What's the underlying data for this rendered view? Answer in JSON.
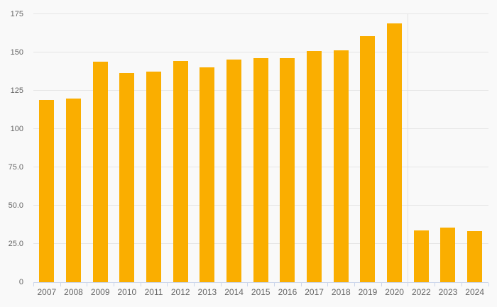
{
  "chart_data": {
    "type": "bar",
    "title": "",
    "xlabel": "",
    "ylabel": "",
    "legend": false,
    "grid": true,
    "categories": [
      "2007",
      "2008",
      "2009",
      "2010",
      "2011",
      "2012",
      "2013",
      "2014",
      "2015",
      "2016",
      "2017",
      "2018",
      "2019",
      "2020",
      "2022",
      "2023",
      "2024"
    ],
    "values": [
      119,
      120,
      144,
      136.5,
      137.5,
      144.5,
      140.5,
      145.5,
      146.5,
      146.5,
      151,
      151.5,
      160.5,
      169,
      34,
      35.5,
      33.5
    ],
    "ylim": [
      0,
      175
    ],
    "y_ticks": [
      {
        "value": 0,
        "label": "0"
      },
      {
        "value": 25,
        "label": "25.0"
      },
      {
        "value": 50,
        "label": "50.0"
      },
      {
        "value": 75,
        "label": "75.0"
      },
      {
        "value": 100,
        "label": "100"
      },
      {
        "value": 125,
        "label": "125"
      },
      {
        "value": 150,
        "label": "150"
      },
      {
        "value": 175,
        "label": "175"
      }
    ],
    "divider_after_category": "2020",
    "colors": {
      "background": "#f9f9f9",
      "bar": "#faae00",
      "gridline": "#e6e6e6",
      "axis_line": "#ccd6eb",
      "tick": "#ccd6eb",
      "label": "#666666",
      "divider": "#e2e2e2"
    }
  }
}
